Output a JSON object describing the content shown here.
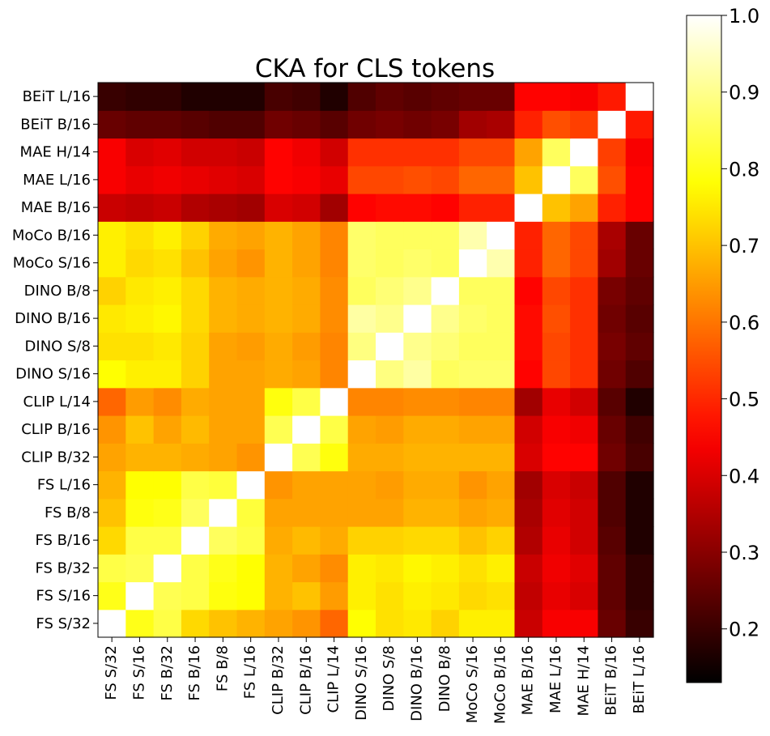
{
  "chart_data": {
    "type": "heatmap",
    "title": "CKA for CLS tokens",
    "xlabel": "",
    "ylabel": "",
    "colormap": "hot",
    "vmin": 0.13,
    "vmax": 1.0,
    "colorbar_ticks": [
      0.2,
      0.3,
      0.4,
      0.5,
      0.6,
      0.7,
      0.8,
      0.9,
      1.0
    ],
    "colorbar_tick_labels": [
      "0.2",
      "0.3",
      "0.4",
      "0.5",
      "0.6",
      "0.7",
      "0.8",
      "0.9",
      "1.0"
    ],
    "models": [
      "FS S/32",
      "FS S/16",
      "FS B/32",
      "FS B/16",
      "FS B/8",
      "FS L/16",
      "CLIP B/32",
      "CLIP B/16",
      "CLIP L/14",
      "DINO S/16",
      "DINO S/8",
      "DINO B/16",
      "DINO B/8",
      "MoCo S/16",
      "MoCo B/16",
      "MAE B/16",
      "MAE L/16",
      "MAE H/14",
      "BEiT B/16",
      "BEiT L/16"
    ],
    "matrix": [
      [
        1.0,
        0.8,
        0.84,
        0.73,
        0.7,
        0.68,
        0.66,
        0.64,
        0.58,
        0.78,
        0.74,
        0.75,
        0.72,
        0.76,
        0.76,
        0.38,
        0.44,
        0.44,
        0.26,
        0.2
      ],
      [
        0.8,
        1.0,
        0.85,
        0.84,
        0.79,
        0.78,
        0.68,
        0.7,
        0.65,
        0.76,
        0.74,
        0.76,
        0.75,
        0.73,
        0.74,
        0.37,
        0.42,
        0.4,
        0.25,
        0.19
      ],
      [
        0.84,
        0.85,
        1.0,
        0.84,
        0.8,
        0.78,
        0.68,
        0.66,
        0.63,
        0.76,
        0.75,
        0.77,
        0.76,
        0.74,
        0.76,
        0.38,
        0.43,
        0.41,
        0.25,
        0.19
      ],
      [
        0.73,
        0.84,
        0.84,
        1.0,
        0.86,
        0.84,
        0.67,
        0.69,
        0.67,
        0.72,
        0.72,
        0.73,
        0.73,
        0.7,
        0.72,
        0.35,
        0.42,
        0.39,
        0.24,
        0.17
      ],
      [
        0.7,
        0.79,
        0.8,
        0.86,
        1.0,
        0.83,
        0.66,
        0.66,
        0.66,
        0.66,
        0.66,
        0.68,
        0.68,
        0.66,
        0.67,
        0.34,
        0.41,
        0.39,
        0.23,
        0.17
      ],
      [
        0.68,
        0.78,
        0.78,
        0.84,
        0.83,
        1.0,
        0.64,
        0.66,
        0.66,
        0.66,
        0.65,
        0.67,
        0.67,
        0.64,
        0.66,
        0.33,
        0.4,
        0.38,
        0.23,
        0.17
      ],
      [
        0.66,
        0.68,
        0.68,
        0.67,
        0.66,
        0.64,
        1.0,
        0.85,
        0.79,
        0.67,
        0.67,
        0.68,
        0.68,
        0.68,
        0.68,
        0.4,
        0.45,
        0.45,
        0.27,
        0.22
      ],
      [
        0.64,
        0.7,
        0.66,
        0.69,
        0.66,
        0.66,
        0.85,
        1.0,
        0.84,
        0.66,
        0.65,
        0.67,
        0.67,
        0.66,
        0.66,
        0.39,
        0.44,
        0.43,
        0.26,
        0.21
      ],
      [
        0.58,
        0.65,
        0.63,
        0.67,
        0.66,
        0.66,
        0.79,
        0.84,
        1.0,
        0.62,
        0.62,
        0.63,
        0.63,
        0.62,
        0.62,
        0.33,
        0.42,
        0.39,
        0.24,
        0.17
      ],
      [
        0.78,
        0.76,
        0.76,
        0.72,
        0.66,
        0.66,
        0.67,
        0.66,
        0.62,
        1.0,
        0.89,
        0.92,
        0.86,
        0.87,
        0.87,
        0.45,
        0.54,
        0.51,
        0.27,
        0.23
      ],
      [
        0.74,
        0.74,
        0.75,
        0.72,
        0.66,
        0.65,
        0.67,
        0.65,
        0.62,
        0.89,
        1.0,
        0.9,
        0.88,
        0.86,
        0.86,
        0.46,
        0.54,
        0.51,
        0.28,
        0.25
      ],
      [
        0.75,
        0.76,
        0.77,
        0.73,
        0.68,
        0.67,
        0.68,
        0.67,
        0.63,
        0.92,
        0.9,
        1.0,
        0.9,
        0.87,
        0.86,
        0.46,
        0.55,
        0.51,
        0.27,
        0.24
      ],
      [
        0.72,
        0.75,
        0.76,
        0.73,
        0.68,
        0.67,
        0.68,
        0.67,
        0.63,
        0.86,
        0.88,
        0.9,
        1.0,
        0.86,
        0.86,
        0.45,
        0.54,
        0.51,
        0.28,
        0.25
      ],
      [
        0.76,
        0.73,
        0.74,
        0.7,
        0.66,
        0.64,
        0.68,
        0.66,
        0.62,
        0.87,
        0.86,
        0.87,
        0.86,
        1.0,
        0.93,
        0.49,
        0.58,
        0.54,
        0.33,
        0.26
      ],
      [
        0.76,
        0.74,
        0.76,
        0.72,
        0.67,
        0.66,
        0.68,
        0.66,
        0.62,
        0.87,
        0.86,
        0.86,
        0.86,
        0.93,
        1.0,
        0.49,
        0.58,
        0.54,
        0.34,
        0.26
      ],
      [
        0.38,
        0.37,
        0.38,
        0.35,
        0.34,
        0.33,
        0.4,
        0.39,
        0.33,
        0.45,
        0.46,
        0.46,
        0.45,
        0.49,
        0.49,
        1.0,
        0.7,
        0.66,
        0.49,
        0.45
      ],
      [
        0.44,
        0.42,
        0.43,
        0.42,
        0.41,
        0.4,
        0.45,
        0.44,
        0.42,
        0.54,
        0.54,
        0.55,
        0.54,
        0.58,
        0.58,
        0.7,
        1.0,
        0.86,
        0.55,
        0.45
      ],
      [
        0.44,
        0.4,
        0.41,
        0.39,
        0.39,
        0.38,
        0.45,
        0.43,
        0.39,
        0.51,
        0.51,
        0.51,
        0.51,
        0.54,
        0.54,
        0.66,
        0.86,
        1.0,
        0.53,
        0.44
      ],
      [
        0.26,
        0.25,
        0.25,
        0.24,
        0.23,
        0.23,
        0.27,
        0.26,
        0.24,
        0.27,
        0.28,
        0.27,
        0.28,
        0.33,
        0.34,
        0.49,
        0.55,
        0.53,
        1.0,
        0.48
      ],
      [
        0.2,
        0.19,
        0.19,
        0.17,
        0.17,
        0.17,
        0.22,
        0.21,
        0.17,
        0.23,
        0.25,
        0.24,
        0.25,
        0.26,
        0.26,
        0.45,
        0.45,
        0.44,
        0.48,
        1.0
      ]
    ]
  }
}
